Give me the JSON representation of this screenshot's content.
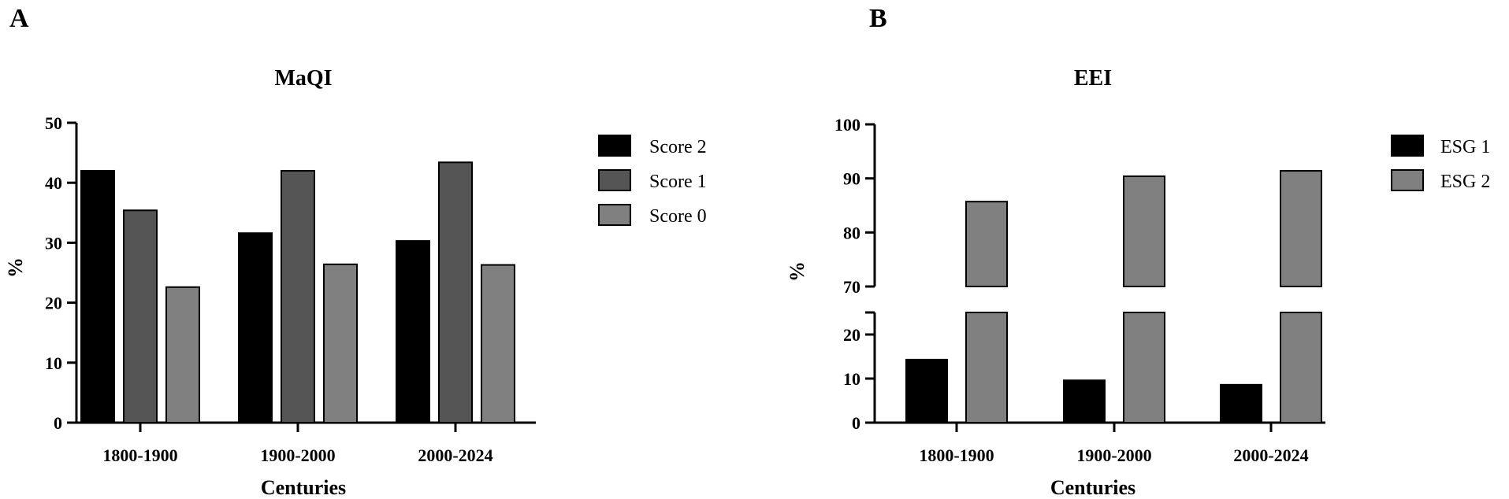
{
  "chart_data": [
    {
      "panel": "A",
      "type": "bar",
      "title": "MaQI",
      "xlabel": "Centuries",
      "ylabel": "%",
      "categories": [
        "1800-1900",
        "1900-2000",
        "2000-2024"
      ],
      "series": [
        {
          "name": "Score 2",
          "color": "#000000",
          "values": [
            42.0,
            31.6,
            30.3
          ]
        },
        {
          "name": "Score 1",
          "color": "#555555",
          "values": [
            35.4,
            42.0,
            43.4
          ]
        },
        {
          "name": "Score 0",
          "color": "#808080",
          "values": [
            22.6,
            26.4,
            26.3
          ]
        }
      ],
      "ylim": [
        0,
        50
      ],
      "yticks": [
        "0",
        "10",
        "20",
        "30",
        "40",
        "50"
      ],
      "legend_position": "right",
      "grid": false
    },
    {
      "panel": "B",
      "type": "bar",
      "title": "EEI",
      "xlabel": "Centuries",
      "ylabel": "%",
      "categories": [
        "1800-1900",
        "1900-2000",
        "2000-2024"
      ],
      "series": [
        {
          "name": "ESG 1",
          "color": "#000000",
          "values": [
            14.3,
            9.6,
            8.6
          ]
        },
        {
          "name": "ESG 2",
          "color": "#808080",
          "values": [
            85.7,
            90.4,
            91.4
          ]
        }
      ],
      "ylim": [
        0,
        100
      ],
      "axis_break": [
        25,
        70
      ],
      "yticks_lower": [
        "0",
        "10",
        "20"
      ],
      "yticks_upper": [
        "70",
        "80",
        "90",
        "100"
      ],
      "legend_position": "right",
      "grid": false
    }
  ]
}
